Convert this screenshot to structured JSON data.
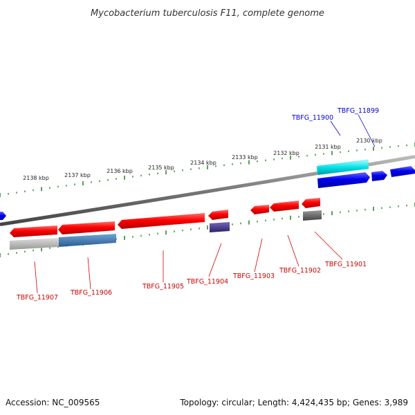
{
  "title": "Mycobacterium tuberculosis F11, complete genome",
  "footer": {
    "accession": "Accession: NC_009565",
    "summary": "Topology: circular; Length: 4,424,435 bp; Genes: 3,989"
  },
  "colors": {
    "forward_strand": "#0000dd",
    "reverse_strand": "#dd0000",
    "tick": "#2a8a2a",
    "backbone": "#888888",
    "rna_gene": "#00cccc",
    "feature_purple": "#443388",
    "feature_gray": "#666666",
    "feature_lightgray": "#bbbbbb",
    "feature_steelblue": "#3a78b0"
  },
  "scale_ticks": [
    {
      "label": "2138 kbp"
    },
    {
      "label": "2137 kbp"
    },
    {
      "label": "2136 kbp"
    },
    {
      "label": "2135 kbp"
    },
    {
      "label": "2134 kbp"
    },
    {
      "label": "2133 kbp"
    },
    {
      "label": "2132 kbp"
    },
    {
      "label": "2131 kbp"
    },
    {
      "label": "2130 kbp"
    }
  ],
  "forward_labels": [
    {
      "id": "TBFG_11900"
    },
    {
      "id": "TBFG_11899"
    }
  ],
  "reverse_labels": [
    {
      "id": "TBFG_11907"
    },
    {
      "id": "TBFG_11906"
    },
    {
      "id": "TBFG_11905"
    },
    {
      "id": "TBFG_11904"
    },
    {
      "id": "TBFG_11903"
    },
    {
      "id": "TBFG_11902"
    },
    {
      "id": "TBFG_11901"
    }
  ]
}
